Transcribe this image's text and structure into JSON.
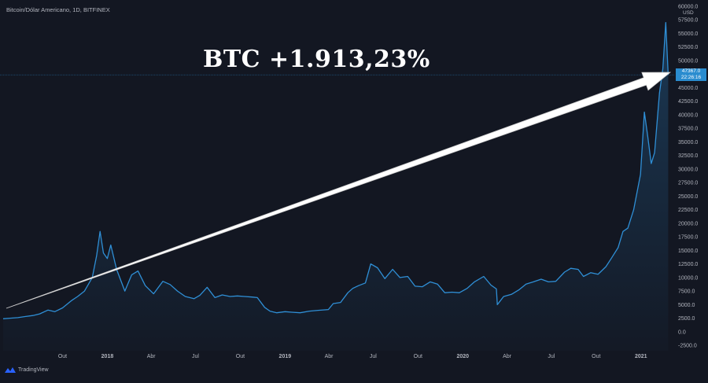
{
  "header": {
    "symbol_title": "Bitcoin/Dólar Americano, 1D, BITFINEX"
  },
  "axis": {
    "currency": "USD"
  },
  "headline": "BTC +1.913,23%",
  "price_tag": {
    "price": "47367.0",
    "countdown": "22:26:16"
  },
  "brand": {
    "name": "TradingView"
  },
  "colors": {
    "background": "#131722",
    "series": "#2f8fd6",
    "price_tag": "#2a8ccf",
    "price_line": "#2a8ccf",
    "arrow": "#ffffff",
    "text": "#b2b5be"
  },
  "chart_data": {
    "type": "area",
    "title": "BTC +1.913,23%",
    "xlabel": "",
    "ylabel": "USD",
    "ylim": [
      -3500,
      60000
    ],
    "grid": false,
    "legend": "none",
    "current_price": 47367.0,
    "yticks": [
      {
        "value": 60000,
        "label": "60000.0"
      },
      {
        "value": 57500,
        "label": "57500.0"
      },
      {
        "value": 55000,
        "label": "55000.0"
      },
      {
        "value": 52500,
        "label": "52500.0"
      },
      {
        "value": 50000,
        "label": "50000.0"
      },
      {
        "value": 45000,
        "label": "45000.0"
      },
      {
        "value": 42500,
        "label": "42500.0"
      },
      {
        "value": 40000,
        "label": "40000.0"
      },
      {
        "value": 37500,
        "label": "37500.0"
      },
      {
        "value": 35000,
        "label": "35000.0"
      },
      {
        "value": 32500,
        "label": "32500.0"
      },
      {
        "value": 30000,
        "label": "30000.0"
      },
      {
        "value": 27500,
        "label": "27500.0"
      },
      {
        "value": 25000,
        "label": "25000.0"
      },
      {
        "value": 22500,
        "label": "22500.0"
      },
      {
        "value": 20000,
        "label": "20000.0"
      },
      {
        "value": 17500,
        "label": "17500.0"
      },
      {
        "value": 15000,
        "label": "15000.0"
      },
      {
        "value": 12500,
        "label": "12500.0"
      },
      {
        "value": 10000,
        "label": "10000.0"
      },
      {
        "value": 7500,
        "label": "7500.0"
      },
      {
        "value": 5000,
        "label": "5000.0"
      },
      {
        "value": 2500,
        "label": "2500.0"
      },
      {
        "value": 0,
        "label": "0.0"
      },
      {
        "value": -2500,
        "label": "-2500.0"
      }
    ],
    "xticks": [
      {
        "date": "2017-10-01",
        "label": "Out",
        "major": false
      },
      {
        "date": "2018-01-01",
        "label": "2018",
        "major": true
      },
      {
        "date": "2018-04-01",
        "label": "Abr",
        "major": false
      },
      {
        "date": "2018-07-01",
        "label": "Jul",
        "major": false
      },
      {
        "date": "2018-10-01",
        "label": "Out",
        "major": false
      },
      {
        "date": "2019-01-01",
        "label": "2019",
        "major": true
      },
      {
        "date": "2019-04-01",
        "label": "Abr",
        "major": false
      },
      {
        "date": "2019-07-01",
        "label": "Jul",
        "major": false
      },
      {
        "date": "2019-10-01",
        "label": "Out",
        "major": false
      },
      {
        "date": "2020-01-01",
        "label": "2020",
        "major": true
      },
      {
        "date": "2020-04-01",
        "label": "Abr",
        "major": false
      },
      {
        "date": "2020-07-01",
        "label": "Jul",
        "major": false
      },
      {
        "date": "2020-10-01",
        "label": "Out",
        "major": false
      },
      {
        "date": "2021-01-01",
        "label": "2021",
        "major": true
      }
    ],
    "series": [
      {
        "x": [
          "2017-06-01",
          "2017-06-15",
          "2017-07-01",
          "2017-07-16",
          "2017-08-01",
          "2017-08-15",
          "2017-09-01",
          "2017-09-15",
          "2017-10-01",
          "2017-10-20",
          "2017-11-01",
          "2017-11-15",
          "2017-12-01",
          "2017-12-10",
          "2017-12-17",
          "2017-12-24",
          "2018-01-01",
          "2018-01-08",
          "2018-01-20",
          "2018-02-06",
          "2018-02-20",
          "2018-03-05",
          "2018-03-20",
          "2018-04-06",
          "2018-04-25",
          "2018-05-10",
          "2018-05-25",
          "2018-06-10",
          "2018-06-28",
          "2018-07-10",
          "2018-07-25",
          "2018-08-10",
          "2018-08-25",
          "2018-09-10",
          "2018-09-25",
          "2018-10-10",
          "2018-10-25",
          "2018-11-05",
          "2018-11-20",
          "2018-12-01",
          "2018-12-15",
          "2019-01-01",
          "2019-01-15",
          "2019-02-01",
          "2019-02-20",
          "2019-03-10",
          "2019-03-31",
          "2019-04-10",
          "2019-04-25",
          "2019-05-10",
          "2019-05-20",
          "2019-06-01",
          "2019-06-15",
          "2019-06-26",
          "2019-07-10",
          "2019-07-25",
          "2019-08-10",
          "2019-08-25",
          "2019-09-10",
          "2019-09-25",
          "2019-10-10",
          "2019-10-26",
          "2019-11-10",
          "2019-11-25",
          "2019-12-10",
          "2019-12-25",
          "2020-01-10",
          "2020-01-25",
          "2020-02-13",
          "2020-02-28",
          "2020-03-10",
          "2020-03-12",
          "2020-03-25",
          "2020-04-10",
          "2020-04-25",
          "2020-05-10",
          "2020-05-25",
          "2020-06-10",
          "2020-06-25",
          "2020-07-10",
          "2020-07-28",
          "2020-08-10",
          "2020-08-25",
          "2020-09-05",
          "2020-09-20",
          "2020-10-05",
          "2020-10-21",
          "2020-11-01",
          "2020-11-15",
          "2020-11-25",
          "2020-12-05",
          "2020-12-17",
          "2020-12-31",
          "2021-01-08",
          "2021-01-15",
          "2021-01-22",
          "2021-01-29",
          "2021-02-08",
          "2021-02-15",
          "2021-02-21",
          "2021-02-26"
        ],
        "values": [
          2400,
          2500,
          2600,
          2800,
          3000,
          3300,
          4000,
          3700,
          4400,
          5800,
          6500,
          7500,
          10000,
          14000,
          18500,
          14500,
          13500,
          16000,
          11500,
          7500,
          10500,
          11200,
          8500,
          7000,
          9300,
          8700,
          7500,
          6500,
          6100,
          6700,
          8200,
          6300,
          6800,
          6500,
          6600,
          6500,
          6400,
          6300,
          4500,
          3800,
          3500,
          3700,
          3600,
          3500,
          3800,
          3950,
          4100,
          5200,
          5400,
          7200,
          8000,
          8500,
          9000,
          12500,
          11800,
          9800,
          11500,
          10000,
          10200,
          8400,
          8300,
          9200,
          8800,
          7200,
          7300,
          7200,
          8000,
          9200,
          10200,
          8600,
          7900,
          5000,
          6500,
          6900,
          7700,
          8800,
          9200,
          9700,
          9200,
          9300,
          11000,
          11700,
          11500,
          10200,
          10900,
          10600,
          12000,
          13500,
          15500,
          18500,
          19100,
          22500,
          29000,
          40500,
          36000,
          31000,
          33000,
          44000,
          48500,
          57000,
          47367
        ]
      }
    ]
  }
}
